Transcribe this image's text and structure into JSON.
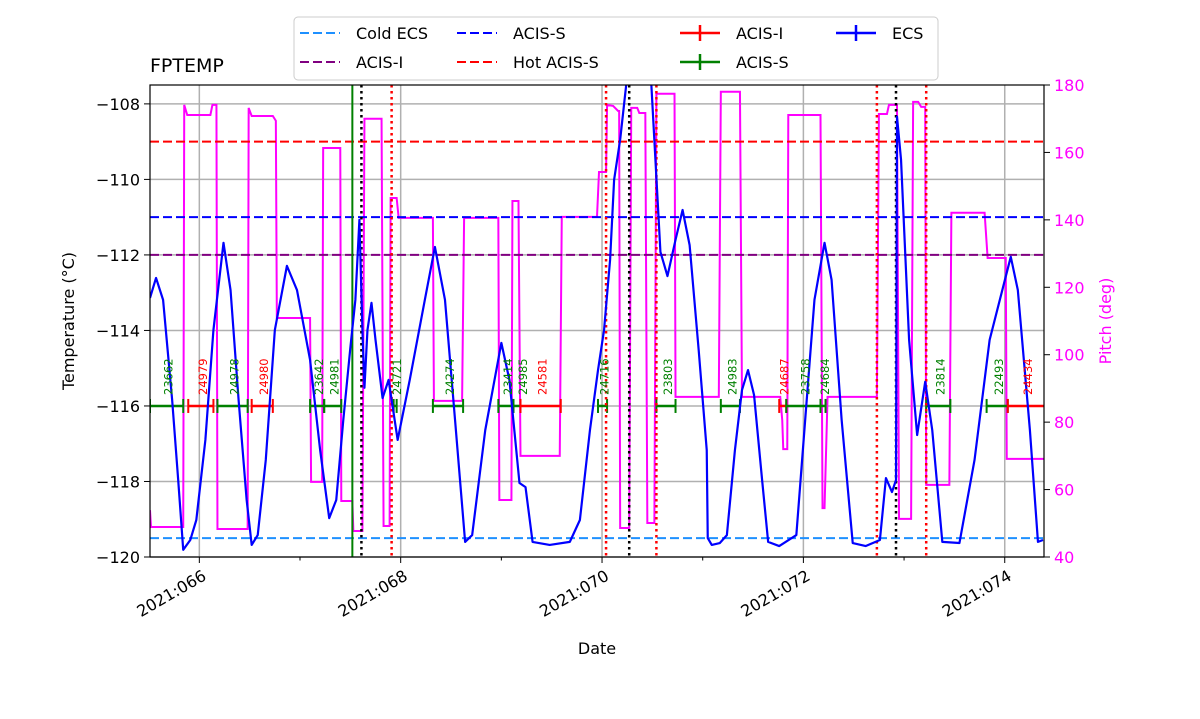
{
  "chart_data": {
    "type": "line",
    "title": "FPTEMP",
    "xlabel": "Date",
    "ylabel": "Temperature (°C)",
    "y2label": "Pitch (deg)",
    "x_units": "day of year 2021",
    "xlim": [
      65.51,
      74.39
    ],
    "ylim": [
      -120,
      -107.5
    ],
    "y2lim": [
      40,
      180
    ],
    "grid": true,
    "x_ticks": [
      {
        "value": 66,
        "label": "2021:066"
      },
      {
        "value": 68,
        "label": "2021:068"
      },
      {
        "value": 70,
        "label": "2021:070"
      },
      {
        "value": 72,
        "label": "2021:072"
      },
      {
        "value": 74,
        "label": "2021:074"
      }
    ],
    "x_minor_ticks": [
      67,
      69,
      71,
      73
    ],
    "y_ticks": [
      -120,
      -118,
      -116,
      -114,
      -112,
      -110,
      -108
    ],
    "y_tick_labels": [
      "−120",
      "−118",
      "−116",
      "−114",
      "−112",
      "−110",
      "−108"
    ],
    "y2_ticks": [
      40,
      60,
      80,
      100,
      120,
      140,
      160,
      180
    ],
    "y2_tick_labels": [
      "40",
      "60",
      "80",
      "100",
      "120",
      "140",
      "160",
      "180"
    ],
    "colors": {
      "temperature": "#0000ff",
      "pitch": "#ff00ff",
      "pitch_axis": "#ff00ff",
      "acis_s_obs": "#008000",
      "acis_i_obs": "#ff0000"
    },
    "hlines": [
      {
        "name": "Cold ECS",
        "value": -119.5,
        "color": "#1e90ff",
        "style": "dashed"
      },
      {
        "name": "ACIS-S",
        "value": -111,
        "color": "#0000ff",
        "style": "dashed"
      },
      {
        "name": "ACIS-I",
        "value": -112,
        "color": "#800080",
        "style": "dashed"
      },
      {
        "name": "Hot ACIS-S",
        "value": -109,
        "color": "#ff0000",
        "style": "dashed"
      }
    ],
    "vlines": [
      {
        "value": 67.52,
        "color": "#008000",
        "style": "solid"
      },
      {
        "value": 67.61,
        "color": "#000000",
        "style": "dotted"
      },
      {
        "value": 70.27,
        "color": "#000000",
        "style": "dotted"
      },
      {
        "value": 72.92,
        "color": "#000000",
        "style": "dotted"
      },
      {
        "value": 67.91,
        "color": "#ff0000",
        "style": "dotted"
      },
      {
        "value": 70.04,
        "color": "#ff0000",
        "style": "dotted"
      },
      {
        "value": 70.54,
        "color": "#ff0000",
        "style": "dotted"
      },
      {
        "value": 72.73,
        "color": "#ff0000",
        "style": "dotted"
      },
      {
        "value": 73.22,
        "color": "#ff0000",
        "style": "dotted"
      }
    ],
    "obsids": [
      {
        "obsid": "23662",
        "instrument": "ACIS-S",
        "start": 65.51,
        "stop": 65.84
      },
      {
        "obsid": "24979",
        "instrument": "ACIS-I",
        "start": 65.89,
        "stop": 66.14
      },
      {
        "obsid": "24978",
        "instrument": "ACIS-S",
        "start": 66.18,
        "stop": 66.48
      },
      {
        "obsid": "24980",
        "instrument": "ACIS-I",
        "start": 66.52,
        "stop": 66.73
      },
      {
        "obsid": "23642",
        "instrument": "ACIS-S",
        "start": 67.1,
        "stop": 67.24
      },
      {
        "obsid": "24981",
        "instrument": "ACIS-S",
        "start": 67.24,
        "stop": 67.41
      },
      {
        "obsid": "24721",
        "instrument": "ACIS-S",
        "start": 67.93,
        "stop": 67.96
      },
      {
        "obsid": "24274",
        "instrument": "ACIS-S",
        "start": 68.32,
        "stop": 68.62
      },
      {
        "obsid": "23414",
        "instrument": "ACIS-S",
        "start": 68.97,
        "stop": 69.12
      },
      {
        "obsid": "24985",
        "instrument": "ACIS-S",
        "start": 69.12,
        "stop": 69.19
      },
      {
        "obsid": "24581",
        "instrument": "ACIS-I",
        "start": 69.19,
        "stop": 69.59
      },
      {
        "obsid": "24716",
        "instrument": "ACIS-S",
        "start": 69.96,
        "stop": 70.05
      },
      {
        "obsid": "23803",
        "instrument": "ACIS-S",
        "start": 70.54,
        "stop": 70.73
      },
      {
        "obsid": "24983",
        "instrument": "ACIS-S",
        "start": 71.18,
        "stop": 71.37
      },
      {
        "obsid": "24687",
        "instrument": "ACIS-I",
        "start": 71.76,
        "stop": 71.83
      },
      {
        "obsid": "23758",
        "instrument": "ACIS-S",
        "start": 71.83,
        "stop": 72.17
      },
      {
        "obsid": "24684",
        "instrument": "ACIS-S",
        "start": 72.17,
        "stop": 72.22
      },
      {
        "obsid": "23814",
        "instrument": "ACIS-S",
        "start": 73.22,
        "stop": 73.46
      },
      {
        "obsid": "22493",
        "instrument": "ACIS-S",
        "start": 73.82,
        "stop": 74.03
      },
      {
        "obsid": "24434",
        "instrument": "ACIS-I",
        "start": 74.03,
        "stop": 74.5
      }
    ],
    "obsid_level": -116,
    "series": [
      {
        "name": "ECS",
        "axis": "left",
        "color": "#0000ff",
        "points": [
          [
            65.51,
            -113.14
          ],
          [
            65.57,
            -112.61
          ],
          [
            65.64,
            -113.19
          ],
          [
            65.73,
            -115.84
          ],
          [
            65.79,
            -117.96
          ],
          [
            65.84,
            -119.81
          ],
          [
            65.91,
            -119.55
          ],
          [
            65.97,
            -119.02
          ],
          [
            66.06,
            -116.9
          ],
          [
            66.14,
            -113.99
          ],
          [
            66.24,
            -111.68
          ],
          [
            66.31,
            -112.93
          ],
          [
            66.39,
            -115.84
          ],
          [
            66.47,
            -118.49
          ],
          [
            66.52,
            -119.68
          ],
          [
            66.58,
            -119.42
          ],
          [
            66.66,
            -117.43
          ],
          [
            66.75,
            -113.99
          ],
          [
            66.87,
            -112.29
          ],
          [
            66.97,
            -112.93
          ],
          [
            67.1,
            -114.78
          ],
          [
            67.2,
            -117.17
          ],
          [
            67.29,
            -118.97
          ],
          [
            67.36,
            -118.49
          ],
          [
            67.43,
            -116.37
          ],
          [
            67.5,
            -114.46
          ],
          [
            67.55,
            -113.19
          ],
          [
            67.59,
            -111.07
          ],
          [
            67.62,
            -113.99
          ],
          [
            67.64,
            -115.52
          ],
          [
            67.67,
            -113.99
          ],
          [
            67.71,
            -113.27
          ],
          [
            67.75,
            -114.25
          ],
          [
            67.82,
            -115.79
          ],
          [
            67.88,
            -115.31
          ],
          [
            67.97,
            -116.9
          ],
          [
            68.09,
            -115.31
          ],
          [
            68.24,
            -113.19
          ],
          [
            68.34,
            -111.79
          ],
          [
            68.44,
            -113.19
          ],
          [
            68.54,
            -116.37
          ],
          [
            68.64,
            -119.6
          ],
          [
            68.71,
            -119.42
          ],
          [
            68.84,
            -116.64
          ],
          [
            69.0,
            -114.33
          ],
          [
            69.08,
            -115.31
          ],
          [
            69.18,
            -118.04
          ],
          [
            69.24,
            -118.15
          ],
          [
            69.31,
            -119.6
          ],
          [
            69.48,
            -119.68
          ],
          [
            69.68,
            -119.6
          ],
          [
            69.78,
            -119.02
          ],
          [
            69.88,
            -116.64
          ],
          [
            69.96,
            -115.05
          ],
          [
            70.02,
            -113.99
          ],
          [
            70.08,
            -112.13
          ],
          [
            70.12,
            -110.01
          ],
          [
            70.18,
            -108.95
          ],
          [
            70.24,
            -107.5
          ],
          [
            70.33,
            -106.5
          ],
          [
            70.49,
            -107.5
          ],
          [
            70.58,
            -111.92
          ],
          [
            70.65,
            -112.56
          ],
          [
            70.73,
            -111.6
          ],
          [
            70.8,
            -110.81
          ],
          [
            70.87,
            -111.74
          ],
          [
            70.96,
            -114.52
          ],
          [
            71.04,
            -117.17
          ],
          [
            71.05,
            -119.5
          ],
          [
            71.09,
            -119.68
          ],
          [
            71.17,
            -119.63
          ],
          [
            71.24,
            -119.42
          ],
          [
            71.32,
            -117.17
          ],
          [
            71.39,
            -115.58
          ],
          [
            71.45,
            -115.05
          ],
          [
            71.51,
            -115.71
          ],
          [
            71.59,
            -117.96
          ],
          [
            71.65,
            -119.6
          ],
          [
            71.76,
            -119.71
          ],
          [
            71.93,
            -119.42
          ],
          [
            72.01,
            -116.64
          ],
          [
            72.11,
            -113.19
          ],
          [
            72.21,
            -111.68
          ],
          [
            72.28,
            -112.66
          ],
          [
            72.38,
            -116.37
          ],
          [
            72.49,
            -119.63
          ],
          [
            72.62,
            -119.71
          ],
          [
            72.76,
            -119.55
          ],
          [
            72.82,
            -117.91
          ],
          [
            72.88,
            -118.28
          ],
          [
            72.92,
            -117.96
          ],
          [
            72.93,
            -108.34
          ],
          [
            72.97,
            -109.48
          ],
          [
            73.05,
            -114.25
          ],
          [
            73.13,
            -116.77
          ],
          [
            73.21,
            -115.36
          ],
          [
            73.28,
            -116.64
          ],
          [
            73.38,
            -119.6
          ],
          [
            73.55,
            -119.63
          ],
          [
            73.7,
            -117.43
          ],
          [
            73.85,
            -114.25
          ],
          [
            74.06,
            -112.05
          ],
          [
            74.13,
            -112.93
          ],
          [
            74.25,
            -116.64
          ],
          [
            74.33,
            -119.6
          ],
          [
            74.38,
            -119.55
          ]
        ]
      },
      {
        "axis": "right",
        "color": "#ff00ff",
        "points": [
          [
            65.51,
            53.9
          ],
          [
            65.52,
            48.9
          ],
          [
            65.84,
            48.9
          ],
          [
            65.85,
            174.1
          ],
          [
            65.88,
            171.1
          ],
          [
            66.11,
            171.1
          ],
          [
            66.13,
            174.1
          ],
          [
            66.17,
            174.1
          ],
          [
            66.18,
            48.3
          ],
          [
            66.48,
            48.3
          ],
          [
            66.49,
            173.2
          ],
          [
            66.52,
            170.8
          ],
          [
            66.73,
            170.8
          ],
          [
            66.76,
            169.4
          ],
          [
            66.77,
            110.9
          ],
          [
            67.1,
            110.9
          ],
          [
            67.11,
            62.3
          ],
          [
            67.22,
            62.3
          ],
          [
            67.23,
            161.3
          ],
          [
            67.4,
            161.3
          ],
          [
            67.41,
            56.6
          ],
          [
            67.52,
            56.6
          ],
          [
            67.53,
            47.7
          ],
          [
            67.62,
            47.7
          ],
          [
            67.64,
            170.0
          ],
          [
            67.81,
            170.0
          ],
          [
            67.83,
            49.2
          ],
          [
            67.89,
            49.2
          ],
          [
            67.9,
            146.5
          ],
          [
            67.96,
            146.5
          ],
          [
            67.98,
            140.6
          ],
          [
            68.32,
            140.6
          ],
          [
            68.33,
            86.3
          ],
          [
            68.61,
            86.3
          ],
          [
            68.63,
            140.6
          ],
          [
            68.97,
            140.6
          ],
          [
            68.98,
            56.9
          ],
          [
            69.1,
            56.9
          ],
          [
            69.11,
            145.6
          ],
          [
            69.17,
            145.6
          ],
          [
            69.19,
            70.0
          ],
          [
            69.58,
            70.0
          ],
          [
            69.6,
            140.9
          ],
          [
            69.95,
            140.9
          ],
          [
            69.97,
            154.2
          ],
          [
            70.04,
            154.2
          ],
          [
            70.05,
            174.1
          ],
          [
            70.11,
            173.8
          ],
          [
            70.16,
            172.3
          ],
          [
            70.17,
            172.3
          ],
          [
            70.18,
            48.6
          ],
          [
            70.27,
            48.6
          ],
          [
            70.29,
            173.2
          ],
          [
            70.35,
            173.2
          ],
          [
            70.37,
            171.7
          ],
          [
            70.43,
            171.7
          ],
          [
            70.45,
            50.1
          ],
          [
            70.52,
            50.1
          ],
          [
            70.54,
            177.4
          ],
          [
            70.72,
            177.4
          ],
          [
            70.73,
            87.5
          ],
          [
            71.16,
            87.5
          ],
          [
            71.18,
            178.0
          ],
          [
            71.37,
            178.0
          ],
          [
            71.39,
            87.5
          ],
          [
            71.77,
            87.5
          ],
          [
            71.79,
            80.6
          ],
          [
            71.8,
            72.0
          ],
          [
            71.84,
            72.0
          ],
          [
            71.85,
            171.1
          ],
          [
            72.17,
            171.1
          ],
          [
            72.19,
            54.5
          ],
          [
            72.21,
            54.5
          ],
          [
            72.24,
            87.5
          ],
          [
            72.73,
            87.5
          ],
          [
            72.75,
            171.4
          ],
          [
            72.83,
            171.4
          ],
          [
            72.85,
            174.1
          ],
          [
            72.93,
            174.1
          ],
          [
            72.95,
            51.3
          ],
          [
            73.07,
            51.3
          ],
          [
            73.09,
            175.0
          ],
          [
            73.14,
            175.0
          ],
          [
            73.17,
            173.5
          ],
          [
            73.21,
            173.5
          ],
          [
            73.22,
            61.4
          ],
          [
            73.45,
            61.4
          ],
          [
            73.47,
            142.1
          ],
          [
            73.8,
            142.1
          ],
          [
            73.83,
            128.7
          ],
          [
            74.01,
            128.7
          ],
          [
            74.02,
            69.1
          ],
          [
            74.39,
            69.1
          ]
        ]
      }
    ],
    "legend": {
      "placement": "top-center",
      "columns": 4,
      "entries": [
        {
          "label": "Cold ECS",
          "color": "#1e90ff",
          "kind": "dashed"
        },
        {
          "label": "ACIS-I",
          "color": "#800080",
          "kind": "dashed"
        },
        {
          "label": "ACIS-S",
          "color": "#0000ff",
          "kind": "dashed"
        },
        {
          "label": "Hot ACIS-S",
          "color": "#ff0000",
          "kind": "dashed"
        },
        {
          "label": "ACIS-I",
          "color": "#ff0000",
          "kind": "errorbar"
        },
        {
          "label": "ACIS-S",
          "color": "#008000",
          "kind": "errorbar"
        },
        {
          "label": "ECS",
          "color": "#0000ff",
          "kind": "errorbar"
        }
      ]
    }
  }
}
